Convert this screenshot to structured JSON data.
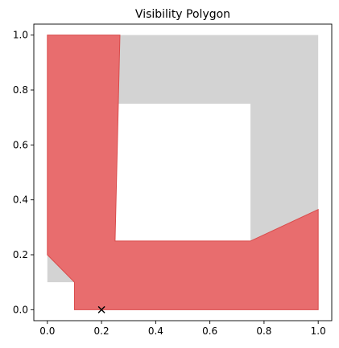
{
  "chart_data": {
    "type": "area",
    "title": "Visibility Polygon",
    "xlabel": "",
    "ylabel": "",
    "xlim": [
      -0.05,
      1.05
    ],
    "ylim": [
      -0.04,
      1.04
    ],
    "x_ticks": [
      "0.0",
      "0.2",
      "0.4",
      "0.6",
      "0.8",
      "1.0"
    ],
    "y_ticks": [
      "0.0",
      "0.2",
      "0.4",
      "0.6",
      "0.8",
      "1.0"
    ],
    "grid": false,
    "legend": "none",
    "environment": {
      "name": "environment",
      "color": "#d3d3d3",
      "outer": [
        [
          0.0,
          0.1
        ],
        [
          0.1,
          0.1
        ],
        [
          0.1,
          0.0
        ],
        [
          1.0,
          0.0
        ],
        [
          1.0,
          1.0
        ],
        [
          0.0,
          1.0
        ]
      ],
      "hole": [
        [
          0.25,
          0.25
        ],
        [
          0.75,
          0.25
        ],
        [
          0.75,
          0.75
        ],
        [
          0.25,
          0.75
        ]
      ]
    },
    "visibility_polygon": {
      "name": "visibility polygon",
      "color": "#e8696a",
      "edge_color": "#d94b4b",
      "points": [
        [
          0.1,
          0.0
        ],
        [
          1.0,
          0.0
        ],
        [
          1.0,
          0.365
        ],
        [
          0.75,
          0.25
        ],
        [
          0.25,
          0.25
        ],
        [
          0.268,
          1.0
        ],
        [
          0.0,
          1.0
        ],
        [
          0.0,
          0.2
        ],
        [
          0.1,
          0.1
        ]
      ]
    },
    "viewpoint": {
      "name": "viewpoint",
      "marker": "x",
      "x": 0.2,
      "y": 0.0
    }
  }
}
